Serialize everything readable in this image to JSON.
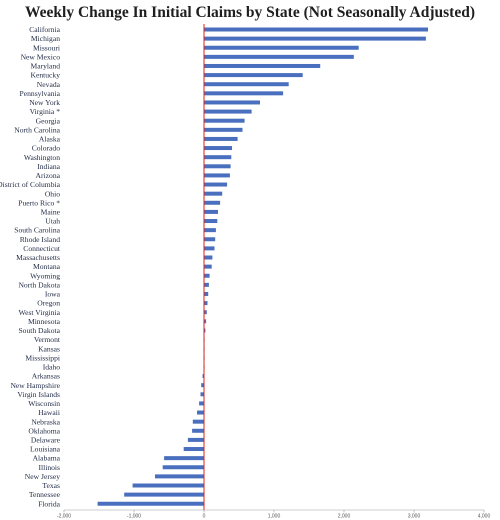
{
  "chart_data": {
    "type": "bar",
    "orientation": "horizontal",
    "title": "Weekly Change In Initial Claims by State (Not Seasonally Adjusted)",
    "xlim": [
      -2000,
      4000
    ],
    "xticks": [
      -2000,
      -1000,
      0,
      1000,
      2000,
      3000,
      4000
    ],
    "xtick_labels": [
      "-2,000",
      "-1,000",
      "0",
      "1,000",
      "2,000",
      "3,000",
      "4,000"
    ],
    "grid": false,
    "bar_color": "#4a6fbf",
    "zero_line_color": "#e0201a",
    "categories": [
      "California",
      "Michigan",
      "Missouri",
      "New Mexico",
      "Maryland",
      "Kentucky",
      "Nevada",
      "Pennsylvania",
      "New York",
      "Virginia *",
      "Georgia",
      "North Carolina",
      "Alaska",
      "Colorado",
      "Washington",
      "Indiana",
      "Arizona",
      "District of Columbia",
      "Ohio",
      "Puerto Rico *",
      "Maine",
      "Utah",
      "South Carolina",
      "Rhode Island",
      "Connecticut",
      "Massachusetts",
      "Montana",
      "Wyoming",
      "North Dakota",
      "Iowa",
      "Oregon",
      "West Virginia",
      "Minnesota",
      "South Dakota",
      "Vermont",
      "Kansas",
      "Mississippi",
      "Idaho",
      "Arkansas",
      "New Hampshire",
      "Virgin Islands",
      "Wisconsin",
      "Hawaii",
      "Nebraska",
      "Oklahoma",
      "Delaware",
      "Louisiana",
      "Alabama",
      "Illinois",
      "New Jersey",
      "Texas",
      "Tennessee",
      "Florida"
    ],
    "values": [
      3200,
      3170,
      2210,
      2140,
      1660,
      1410,
      1210,
      1130,
      800,
      680,
      580,
      550,
      480,
      400,
      390,
      380,
      370,
      330,
      260,
      230,
      200,
      190,
      170,
      160,
      150,
      120,
      110,
      80,
      70,
      60,
      50,
      40,
      30,
      20,
      8,
      5,
      3,
      2,
      -20,
      -40,
      -50,
      -70,
      -100,
      -160,
      -170,
      -230,
      -290,
      -570,
      -590,
      -700,
      -1020,
      -1140,
      -1520
    ]
  }
}
